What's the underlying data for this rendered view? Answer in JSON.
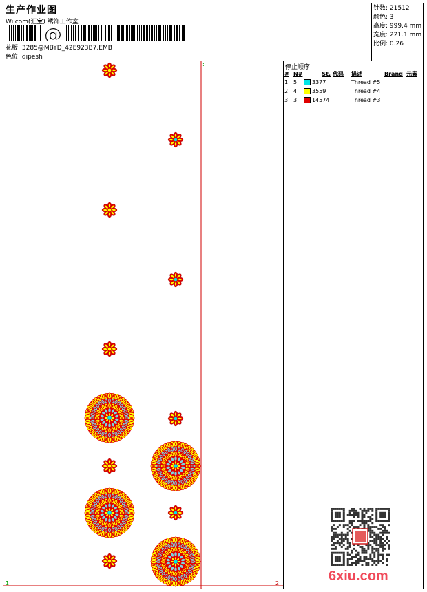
{
  "header": {
    "title": "生产作业图",
    "company": "Wilcom(汇宝) 绣饰工作室",
    "barcode_symbol": "@",
    "design_label": "花版:",
    "design_file": "3285@MBYD_42E923B7.EMB",
    "colorway_label": "色位:",
    "colorway": "dipesh"
  },
  "stats": {
    "stitches_label": "针数:",
    "stitches": "21512",
    "colors_label": "颜色:",
    "colors": "3",
    "height_label": "高度:",
    "height": "999.4 mm",
    "width_label": "宽度:",
    "width": "221.1 mm",
    "scale_label": "比例:",
    "scale": "0.26"
  },
  "stop_sequence": {
    "title": "停止顺序:",
    "headers": [
      "#",
      "N#",
      "St.",
      "代码",
      "描述",
      "Brand",
      "元素"
    ],
    "rows": [
      {
        "idx": "1.",
        "n": "5",
        "color": "#00e5e5",
        "code": "3377",
        "desc": "Thread #5"
      },
      {
        "idx": "2.",
        "n": "4",
        "color": "#ffff00",
        "code": "3559",
        "desc": "Thread #4"
      },
      {
        "idx": "3.",
        "n": "3",
        "color": "#e00000",
        "code": "14574",
        "desc": "Thread #3"
      }
    ]
  },
  "canvas": {
    "corner_tl": ":",
    "corner_bl": "1",
    "corner_br": "2",
    "corner_bc": ":"
  },
  "watermark": {
    "text": "6xiu.com"
  },
  "colors": {
    "red": "#e00000",
    "yellow": "#ffff00",
    "cyan": "#00e5e5",
    "guide": "#d00000"
  }
}
